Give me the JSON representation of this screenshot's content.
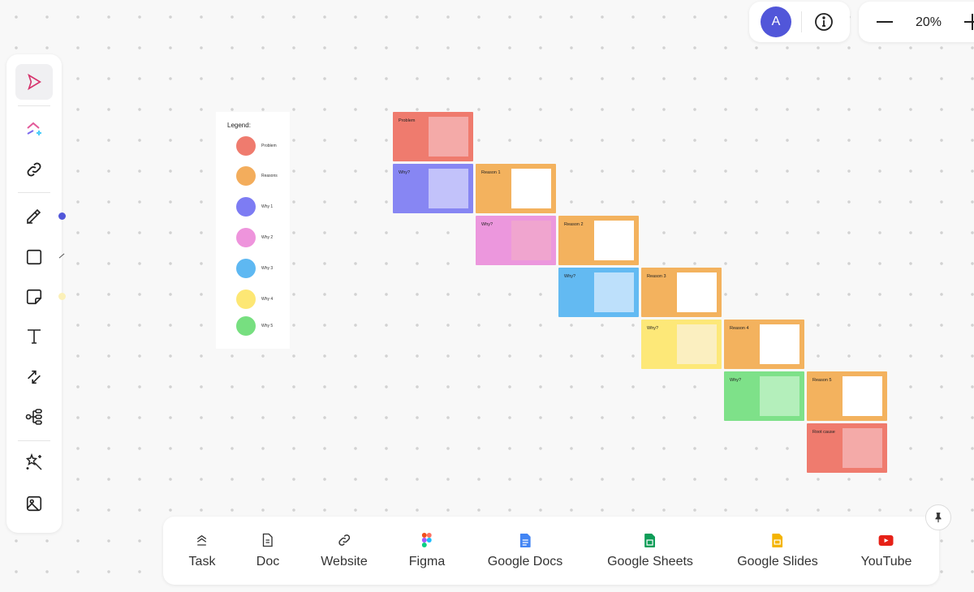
{
  "top": {
    "avatar_initial": "A",
    "zoom_level": "20%"
  },
  "legend": {
    "title": "Legend:",
    "items": [
      {
        "label": "Problem",
        "color": "#ef7b6e"
      },
      {
        "label": "Reasons",
        "color": "#f3ad5c"
      },
      {
        "label": "Why 1",
        "color": "#7d7cf3"
      },
      {
        "label": "Why 2",
        "color": "#ee94dc"
      },
      {
        "label": "Why 3",
        "color": "#5eb8f2"
      },
      {
        "label": "Why 4",
        "color": "#fde774"
      },
      {
        "label": "Why 5",
        "color": "#77df80"
      }
    ]
  },
  "cards": [
    {
      "label": "Problem",
      "color": "#ef7b6e",
      "inner": "#f4aaa8"
    },
    {
      "label": "Why?",
      "color": "#8786f3",
      "inner": "#c2c2fa"
    },
    {
      "label": "Reason 1",
      "color": "#f3b25e",
      "inner": "#ffffff"
    },
    {
      "label": "Why?",
      "color": "#ec97dd",
      "inner": "#f0a5cf"
    },
    {
      "label": "Reason 2",
      "color": "#f3b25e",
      "inner": "#ffffff"
    },
    {
      "label": "Why?",
      "color": "#63baf2",
      "inner": "#bde0fb"
    },
    {
      "label": "Reason 3",
      "color": "#f3b25e",
      "inner": "#ffffff"
    },
    {
      "label": "Why?",
      "color": "#fde878",
      "inner": "#fbefc0"
    },
    {
      "label": "Reason 4",
      "color": "#f3b25e",
      "inner": "#ffffff"
    },
    {
      "label": "Why?",
      "color": "#7ee189",
      "inner": "#b4efbb"
    },
    {
      "label": "Reason 5",
      "color": "#f3b25e",
      "inner": "#ffffff"
    },
    {
      "label": "Root cause",
      "color": "#ef7b6e",
      "inner": "#f4aaa8"
    }
  ],
  "bottom_toolbar": [
    {
      "label": "Task",
      "icon": "task-icon"
    },
    {
      "label": "Doc",
      "icon": "doc-icon"
    },
    {
      "label": "Website",
      "icon": "link-icon"
    },
    {
      "label": "Figma",
      "icon": "figma-icon"
    },
    {
      "label": "Google Docs",
      "icon": "google-docs-icon"
    },
    {
      "label": "Google Sheets",
      "icon": "google-sheets-icon"
    },
    {
      "label": "Google Slides",
      "icon": "google-slides-icon"
    },
    {
      "label": "YouTube",
      "icon": "youtube-icon"
    }
  ]
}
